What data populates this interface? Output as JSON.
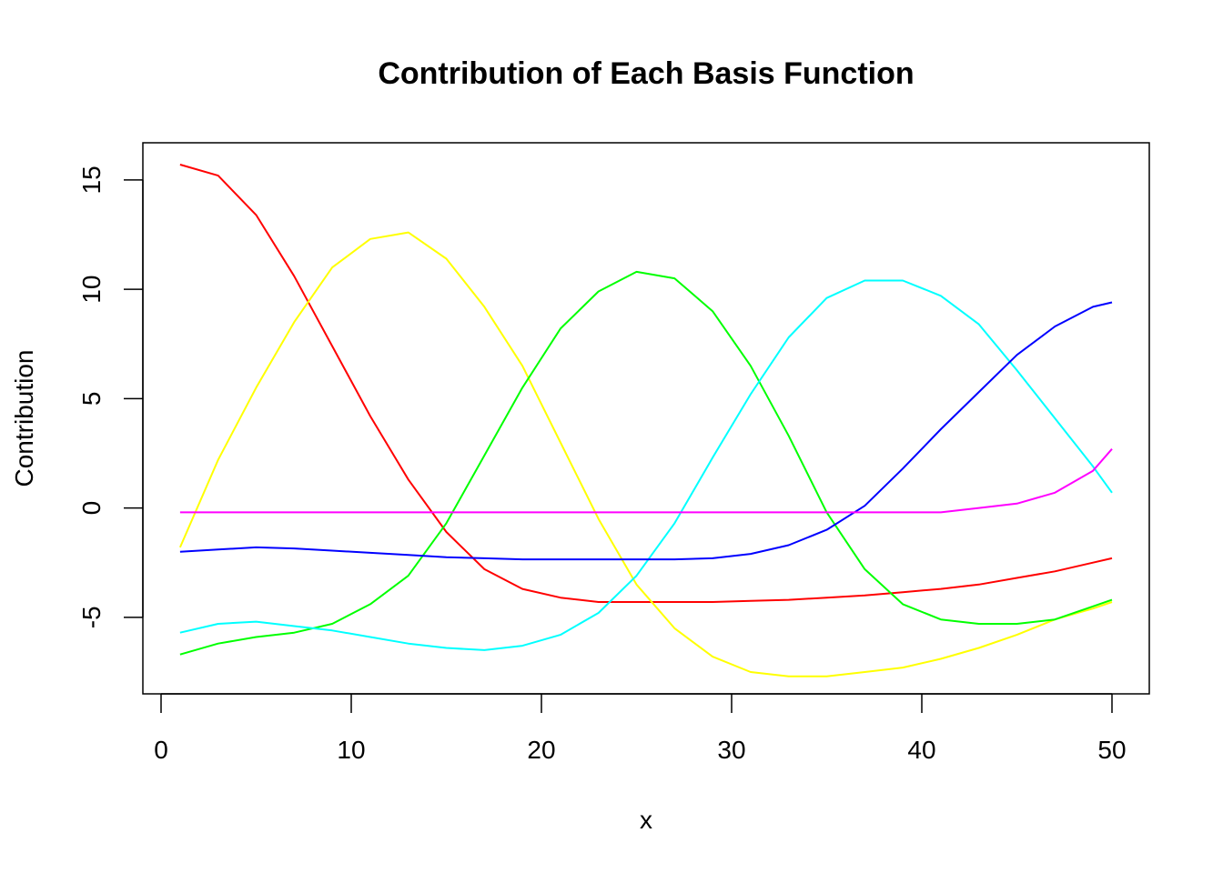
{
  "chart_data": {
    "type": "line",
    "title": "Contribution of Each Basis Function",
    "xlabel": "x",
    "ylabel": "Contribution",
    "xlim": [
      0,
      50
    ],
    "ylim": [
      -8.5,
      16.7
    ],
    "x_ticks": [
      "0",
      "10",
      "20",
      "30",
      "40",
      "50"
    ],
    "y_ticks": [
      "-5",
      "0",
      "5",
      "10",
      "15"
    ],
    "grid": false,
    "legend": "none",
    "x": [
      1,
      3,
      5,
      7,
      9,
      11,
      13,
      15,
      17,
      19,
      21,
      23,
      25,
      27,
      29,
      31,
      33,
      35,
      37,
      39,
      41,
      43,
      45,
      47,
      49,
      50
    ],
    "series": [
      {
        "color": "#FF0000",
        "values": [
          15.7,
          15.2,
          13.4,
          10.6,
          7.4,
          4.2,
          1.3,
          -1.1,
          -2.8,
          -3.7,
          -4.1,
          -4.3,
          -4.3,
          -4.3,
          -4.3,
          -4.25,
          -4.2,
          -4.1,
          -4.0,
          -3.85,
          -3.7,
          -3.5,
          -3.2,
          -2.9,
          -2.5,
          -2.3
        ]
      },
      {
        "color": "#FFFF00",
        "values": [
          -1.8,
          2.2,
          5.5,
          8.5,
          11.0,
          12.3,
          12.6,
          11.4,
          9.2,
          6.5,
          3.0,
          -0.5,
          -3.5,
          -5.5,
          -6.8,
          -7.5,
          -7.7,
          -7.7,
          -7.5,
          -7.3,
          -6.9,
          -6.4,
          -5.8,
          -5.1,
          -4.6,
          -4.3
        ]
      },
      {
        "color": "#00FF00",
        "values": [
          -6.7,
          -6.2,
          -5.9,
          -5.7,
          -5.3,
          -4.4,
          -3.1,
          -0.7,
          2.4,
          5.5,
          8.2,
          9.9,
          10.8,
          10.5,
          9.0,
          6.5,
          3.3,
          -0.2,
          -2.8,
          -4.4,
          -5.1,
          -5.3,
          -5.3,
          -5.1,
          -4.5,
          -4.2
        ]
      },
      {
        "color": "#00FFFF",
        "values": [
          -5.7,
          -5.3,
          -5.2,
          -5.4,
          -5.6,
          -5.9,
          -6.2,
          -6.4,
          -6.5,
          -6.3,
          -5.8,
          -4.8,
          -3.1,
          -0.7,
          2.3,
          5.2,
          7.8,
          9.6,
          10.4,
          10.4,
          9.7,
          8.4,
          6.3,
          4.1,
          1.9,
          0.7
        ]
      },
      {
        "color": "#0000FF",
        "values": [
          -2.0,
          -1.9,
          -1.8,
          -1.85,
          -1.95,
          -2.05,
          -2.15,
          -2.25,
          -2.3,
          -2.35,
          -2.35,
          -2.35,
          -2.35,
          -2.35,
          -2.3,
          -2.1,
          -1.7,
          -1.0,
          0.1,
          1.8,
          3.6,
          5.3,
          7.0,
          8.3,
          9.2,
          9.4
        ]
      },
      {
        "color": "#FF00FF",
        "values": [
          -0.2,
          -0.2,
          -0.2,
          -0.2,
          -0.2,
          -0.2,
          -0.2,
          -0.2,
          -0.2,
          -0.2,
          -0.2,
          -0.2,
          -0.2,
          -0.2,
          -0.2,
          -0.2,
          -0.2,
          -0.2,
          -0.2,
          -0.2,
          -0.2,
          0.0,
          0.2,
          0.7,
          1.7,
          2.7
        ]
      }
    ]
  }
}
